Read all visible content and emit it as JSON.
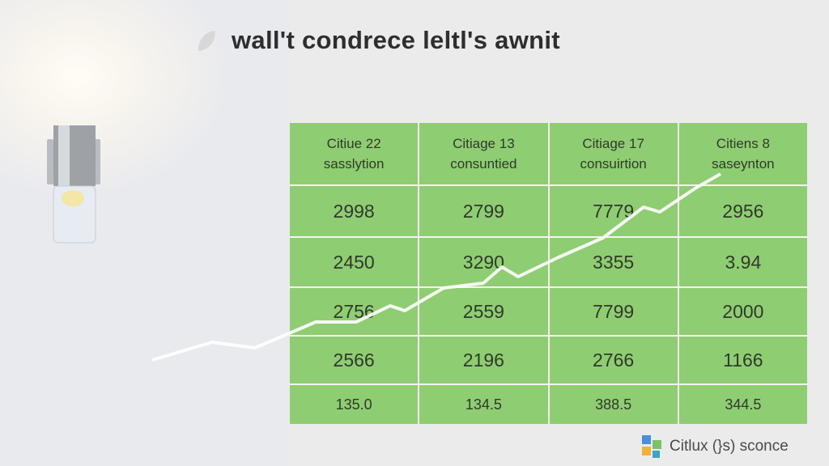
{
  "header": {
    "title": "wall't condrece leltl's awnit"
  },
  "table": {
    "columns": [
      [
        "Citiue 22",
        "sasslytion"
      ],
      [
        "Citiage 13",
        "consuntied"
      ],
      [
        "Citiage 17",
        "consuirtion"
      ],
      [
        "Citiens 8",
        "saseynton"
      ]
    ],
    "rows": [
      [
        "2998",
        "2799",
        "7779",
        "2956"
      ],
      [
        "2450",
        "3290",
        "3355",
        "3.94"
      ],
      [
        "2756",
        "2559",
        "7799",
        "2000"
      ],
      [
        "2566",
        "2196",
        "2766",
        "1166"
      ],
      [
        "135.0",
        "134.5",
        "388.5",
        "344.5"
      ]
    ]
  },
  "footer": {
    "logo": "Citlux (}s) sconce"
  }
}
